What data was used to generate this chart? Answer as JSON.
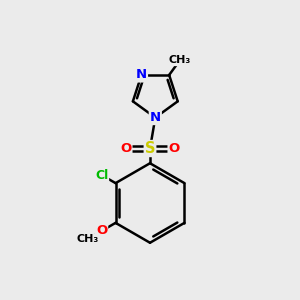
{
  "background_color": "#ebebeb",
  "bond_color": "#000000",
  "bond_width": 1.8,
  "atom_colors": {
    "N": "#0000ff",
    "S": "#cccc00",
    "O": "#ff0000",
    "Cl": "#00bb00",
    "C": "#000000"
  },
  "font_size": 9.5
}
